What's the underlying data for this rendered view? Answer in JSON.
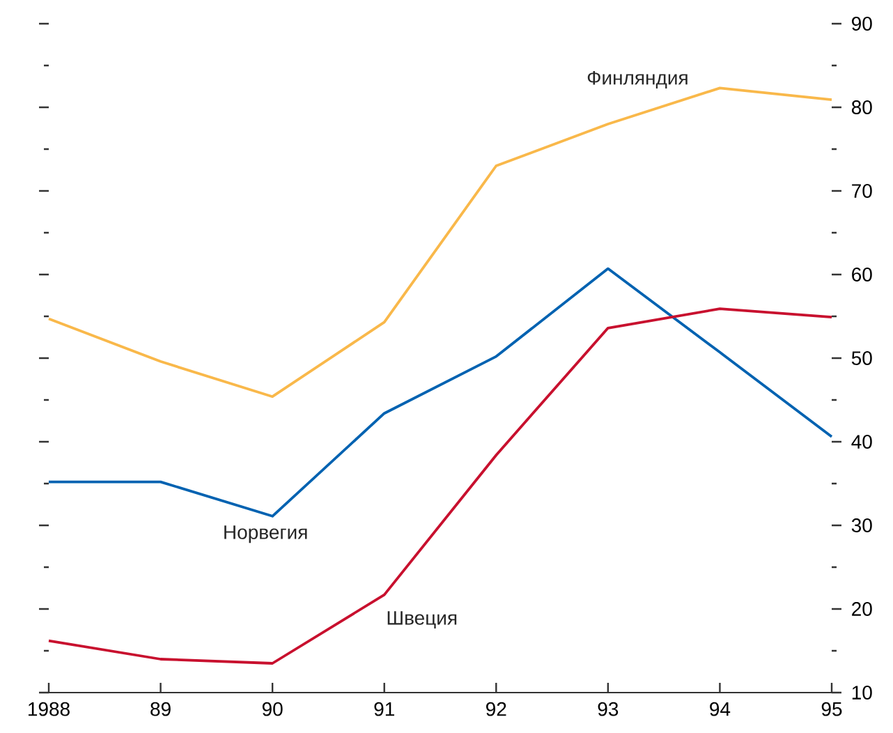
{
  "chart_data": {
    "type": "line",
    "x": [
      1988,
      1989,
      1990,
      1991,
      1992,
      1993,
      1994,
      1995
    ],
    "xlim": [
      1988,
      1995
    ],
    "xticks": [
      {
        "value": 1988,
        "label": "1988"
      },
      {
        "value": 1989,
        "label": "89"
      },
      {
        "value": 1990,
        "label": "90"
      },
      {
        "value": 1991,
        "label": "91"
      },
      {
        "value": 1992,
        "label": "92"
      },
      {
        "value": 1993,
        "label": "93"
      },
      {
        "value": 1994,
        "label": "94"
      },
      {
        "value": 1995,
        "label": "95"
      }
    ],
    "ylim": [
      10,
      90
    ],
    "yticks": [
      10,
      {
        "value": 15,
        "label": null
      },
      20,
      {
        "value": 25,
        "label": null
      },
      30,
      {
        "value": 35,
        "label": null
      },
      40,
      {
        "value": 45,
        "label": null
      },
      50,
      {
        "value": 55,
        "label": null
      },
      60,
      {
        "value": 65,
        "label": null
      },
      70,
      {
        "value": 75,
        "label": null
      },
      80,
      {
        "value": 85,
        "label": null
      },
      90
    ],
    "grid": false,
    "legend": false,
    "marker": "none",
    "line_style": "solid",
    "series": [
      {
        "name": "Финляндия",
        "color": "#f9b84a",
        "values": [
          54.7,
          49.6,
          45.4,
          54.3,
          73.0,
          78.0,
          82.3,
          80.9
        ]
      },
      {
        "name": "Норвегия",
        "color": "#0062b1",
        "values": [
          35.2,
          35.2,
          31.1,
          43.4,
          50.2,
          60.7,
          50.7,
          40.6
        ]
      },
      {
        "name": "Швеция",
        "color": "#c8102e",
        "values": [
          16.2,
          14.0,
          13.5,
          21.7,
          38.4,
          53.6,
          55.9,
          54.9
        ]
      }
    ]
  }
}
